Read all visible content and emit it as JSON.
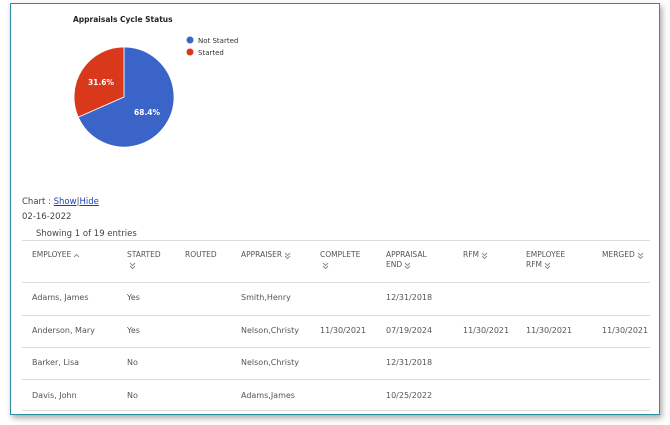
{
  "chart_data": {
    "type": "pie",
    "title": "Appraisals Cycle Status",
    "categories": [
      "Not Started",
      "Started"
    ],
    "values": [
      68.4,
      31.6
    ],
    "value_labels": [
      "68.4%",
      "31.6%"
    ],
    "colors": [
      "#3a64c8",
      "#d9381b"
    ]
  },
  "chart_toggle": {
    "label": "Chart :",
    "show": "Show",
    "separator": "|",
    "hide": "Hide"
  },
  "date": "02-16-2022",
  "entries_info": "Showing 1 of 19 entries",
  "table": {
    "headers": [
      "EMPLOYEE",
      "STARTED",
      "ROUTED",
      "APPRAISER",
      "COMPLETE",
      "APPRAISAL END",
      "RFM",
      "EMPLOYEE RFM",
      "MERGED"
    ],
    "rows": [
      [
        "Adams, James",
        "Yes",
        null,
        "Smith,Henry",
        null,
        "12/31/2018",
        null,
        null,
        null
      ],
      [
        "Anderson, Mary",
        "Yes",
        null,
        "Nelson,Christy",
        "11/30/2021",
        "07/19/2024",
        "11/30/2021",
        "11/30/2021",
        "11/30/2021"
      ],
      [
        "Barker, Lisa",
        "No",
        null,
        "Nelson,Christy",
        null,
        "12/31/2018",
        null,
        null,
        null
      ],
      [
        "Davis, John",
        "No",
        null,
        "Adams,James",
        null,
        "10/25/2022",
        null,
        null,
        null
      ]
    ]
  }
}
